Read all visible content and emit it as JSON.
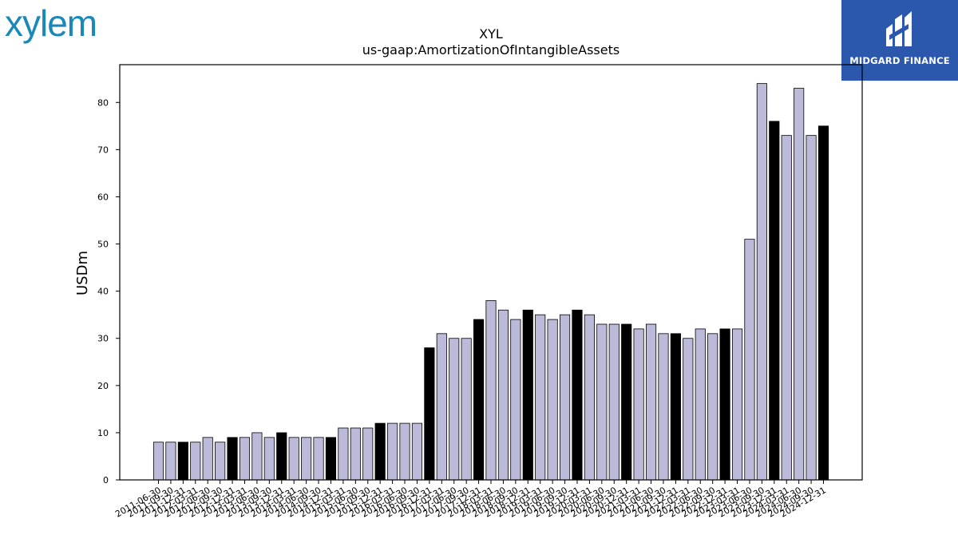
{
  "brand": {
    "left_logo": "xylem",
    "right_logo": "MIDGARD FINANCE",
    "accent_left": "#1a88b8",
    "accent_right": "#2b57ad"
  },
  "chart_data": {
    "type": "bar",
    "title": "XYL",
    "subtitle": "us-gaap:AmortizationOfIntangibleAssets",
    "xlabel": "",
    "ylabel": "USDm",
    "ylim": [
      0,
      88
    ],
    "yticks": [
      0,
      10,
      20,
      30,
      40,
      50,
      60,
      70,
      80
    ],
    "grid": false,
    "colors": {
      "quarter": "#bcbad9",
      "fiscal_year_end": "#000000"
    },
    "categories": [
      "2011-06-30",
      "2011-09-30",
      "2011-12-31",
      "2012-03-31",
      "2012-06-30",
      "2012-09-30",
      "2012-12-31",
      "2013-03-31",
      "2013-06-30",
      "2013-09-30",
      "2013-12-31",
      "2014-03-31",
      "2014-06-30",
      "2014-09-30",
      "2014-12-31",
      "2015-03-31",
      "2015-06-30",
      "2015-09-30",
      "2015-12-31",
      "2016-03-31",
      "2016-06-30",
      "2016-09-30",
      "2016-12-31",
      "2017-03-31",
      "2017-06-30",
      "2017-09-30",
      "2017-12-31",
      "2018-03-31",
      "2018-06-30",
      "2018-09-30",
      "2018-12-31",
      "2019-03-31",
      "2019-06-30",
      "2019-09-30",
      "2019-12-31",
      "2020-03-31",
      "2020-06-30",
      "2020-09-30",
      "2020-12-31",
      "2021-03-31",
      "2021-06-30",
      "2021-09-30",
      "2021-12-31",
      "2022-03-31",
      "2022-06-30",
      "2022-09-30",
      "2022-12-31",
      "2023-03-31",
      "2023-06-30",
      "2023-09-30",
      "2023-12-31",
      "2024-03-31",
      "2024-06-30",
      "2024-09-30",
      "2024-12-31"
    ],
    "values": [
      8,
      8,
      8,
      8,
      9,
      8,
      9,
      9,
      10,
      9,
      10,
      9,
      9,
      9,
      9,
      11,
      11,
      11,
      12,
      12,
      12,
      12,
      28,
      31,
      30,
      30,
      34,
      38,
      36,
      34,
      36,
      35,
      34,
      35,
      36,
      35,
      33,
      33,
      33,
      32,
      33,
      31,
      31,
      30,
      32,
      31,
      32,
      32,
      51,
      84,
      76,
      73,
      83,
      73,
      75
    ],
    "highlighted": [
      false,
      false,
      true,
      false,
      false,
      false,
      true,
      false,
      false,
      false,
      true,
      false,
      false,
      false,
      true,
      false,
      false,
      false,
      true,
      false,
      false,
      false,
      true,
      false,
      false,
      false,
      true,
      false,
      false,
      false,
      true,
      false,
      false,
      false,
      true,
      false,
      false,
      false,
      true,
      false,
      false,
      false,
      true,
      false,
      false,
      false,
      true,
      false,
      false,
      false,
      true,
      false,
      false,
      false,
      true
    ]
  }
}
